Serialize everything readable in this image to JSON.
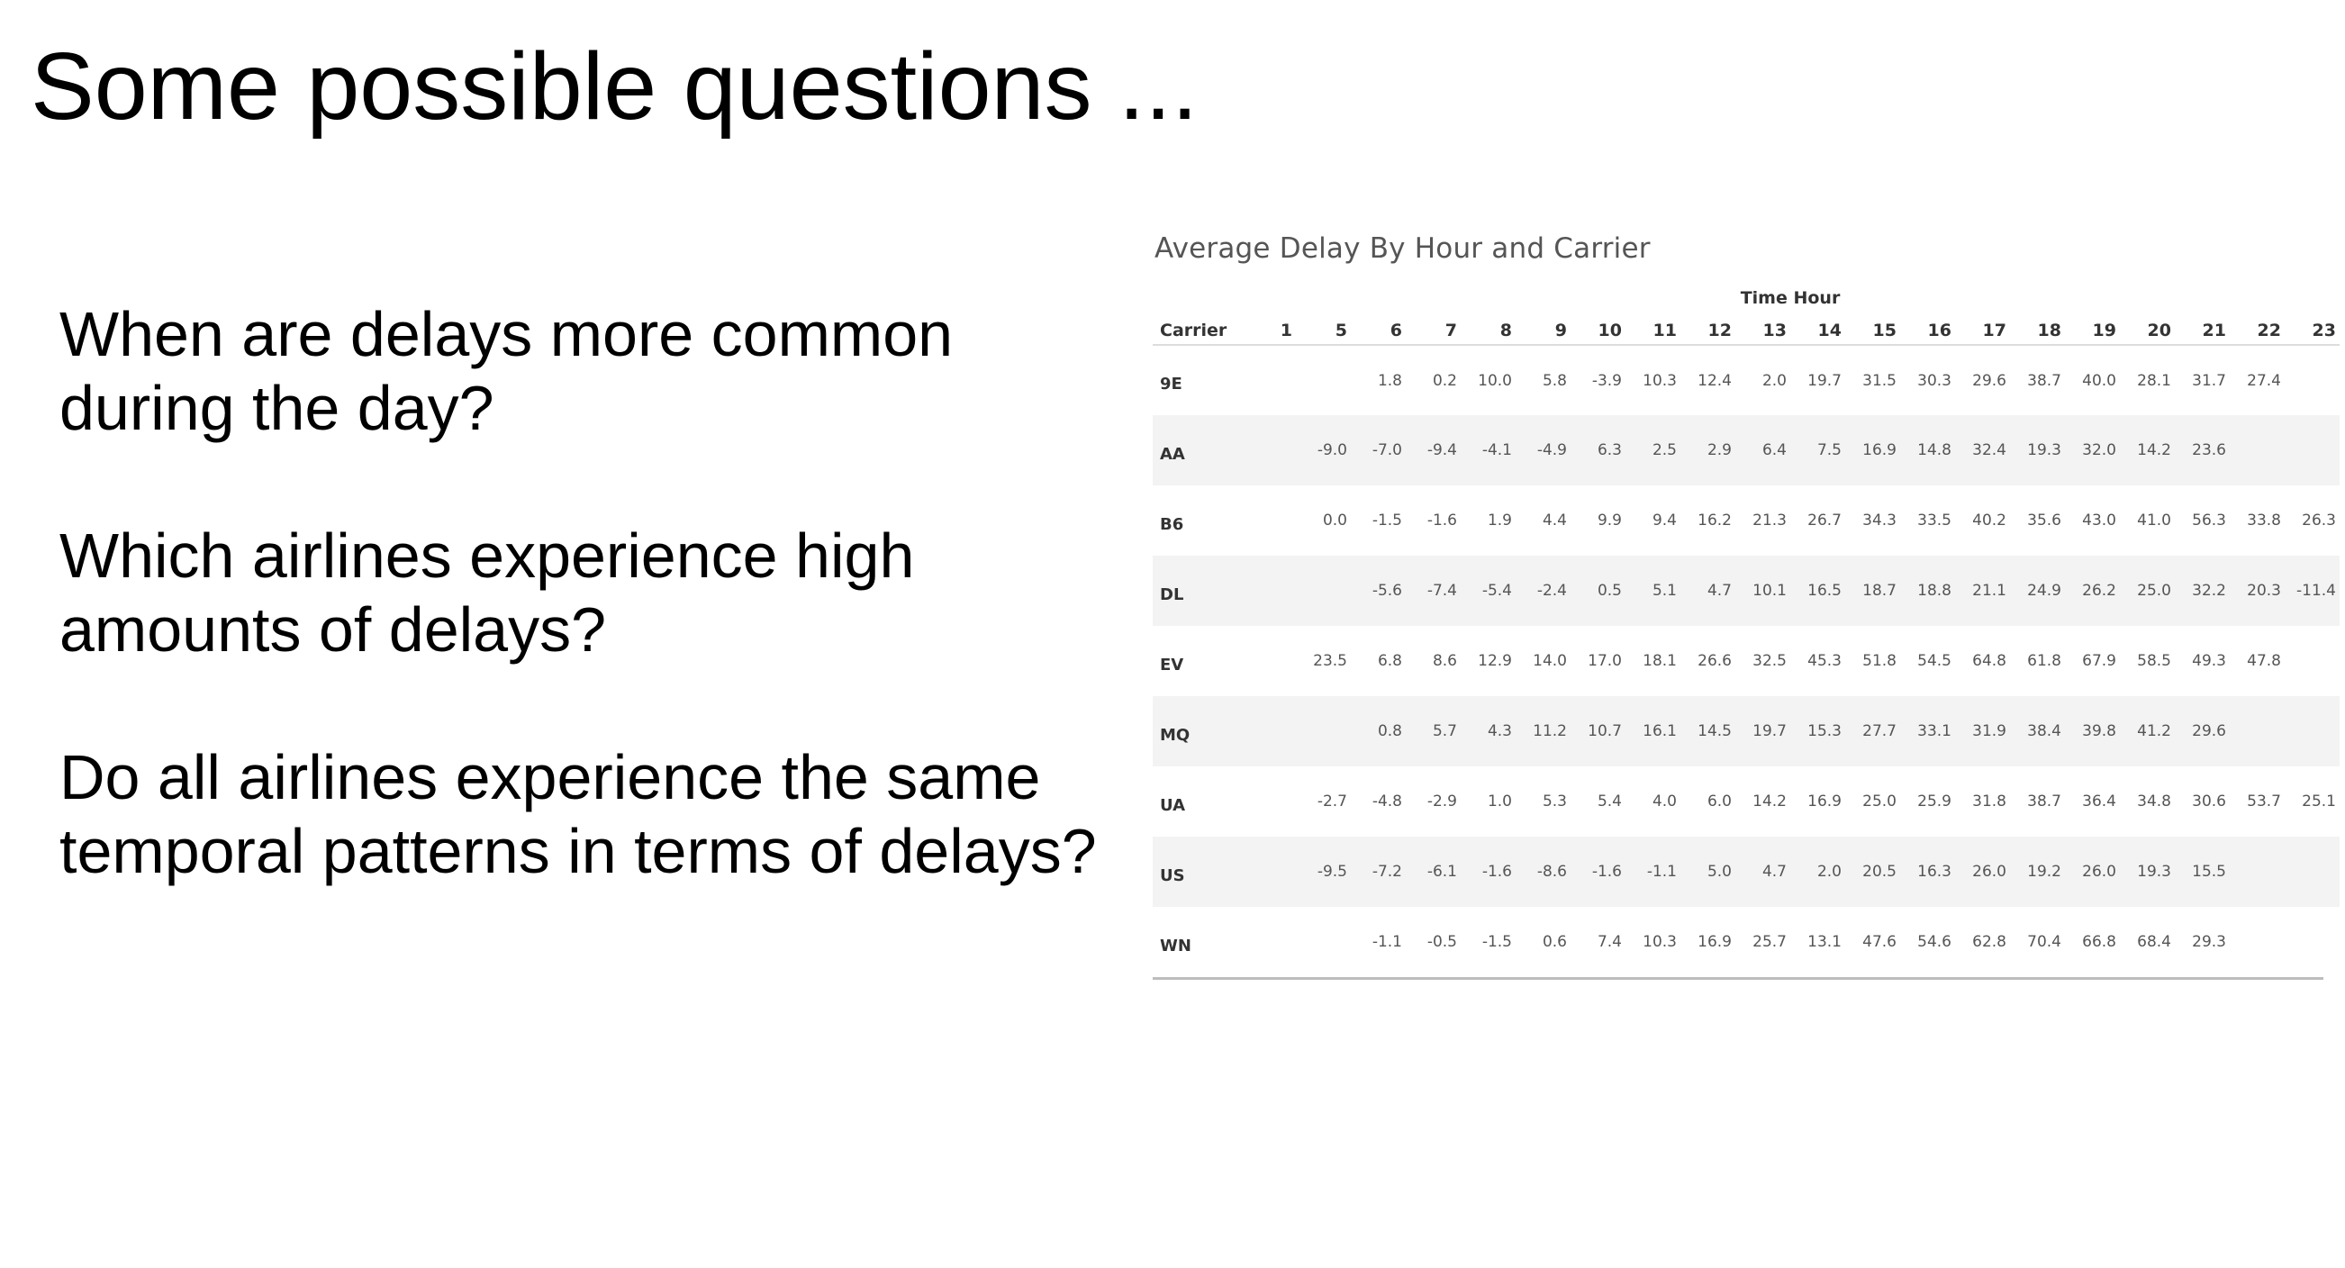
{
  "slide": {
    "title": "Some possible questions ...",
    "questions": [
      "When are delays more common during the day?",
      "Which airlines experience high amounts of delays?",
      "Do all airlines experience the same temporal patterns in terms of delays?"
    ]
  },
  "table": {
    "title": "Average Delay By Hour and Carrier",
    "column_group_label": "Time Hour",
    "row_header_label": "Carrier",
    "hours": [
      "1",
      "5",
      "6",
      "7",
      "8",
      "9",
      "10",
      "11",
      "12",
      "13",
      "14",
      "15",
      "16",
      "17",
      "18",
      "19",
      "20",
      "21",
      "22",
      "23"
    ],
    "rows": [
      {
        "carrier": "9E",
        "values": [
          "",
          "",
          "1.8",
          "0.2",
          "10.0",
          "5.8",
          "-3.9",
          "10.3",
          "12.4",
          "2.0",
          "19.7",
          "31.5",
          "30.3",
          "29.6",
          "38.7",
          "40.0",
          "28.1",
          "31.7",
          "27.4",
          ""
        ]
      },
      {
        "carrier": "AA",
        "values": [
          "",
          "-9.0",
          "-7.0",
          "-9.4",
          "-4.1",
          "-4.9",
          "6.3",
          "2.5",
          "2.9",
          "6.4",
          "7.5",
          "16.9",
          "14.8",
          "32.4",
          "19.3",
          "32.0",
          "14.2",
          "23.6",
          "",
          ""
        ]
      },
      {
        "carrier": "B6",
        "values": [
          "",
          "0.0",
          "-1.5",
          "-1.6",
          "1.9",
          "4.4",
          "9.9",
          "9.4",
          "16.2",
          "21.3",
          "26.7",
          "34.3",
          "33.5",
          "40.2",
          "35.6",
          "43.0",
          "41.0",
          "56.3",
          "33.8",
          "26.3"
        ]
      },
      {
        "carrier": "DL",
        "values": [
          "",
          "",
          "-5.6",
          "-7.4",
          "-5.4",
          "-2.4",
          "0.5",
          "5.1",
          "4.7",
          "10.1",
          "16.5",
          "18.7",
          "18.8",
          "21.1",
          "24.9",
          "26.2",
          "25.0",
          "32.2",
          "20.3",
          "-11.4"
        ]
      },
      {
        "carrier": "EV",
        "values": [
          "",
          "23.5",
          "6.8",
          "8.6",
          "12.9",
          "14.0",
          "17.0",
          "18.1",
          "26.6",
          "32.5",
          "45.3",
          "51.8",
          "54.5",
          "64.8",
          "61.8",
          "67.9",
          "58.5",
          "49.3",
          "47.8",
          ""
        ]
      },
      {
        "carrier": "MQ",
        "values": [
          "",
          "",
          "0.8",
          "5.7",
          "4.3",
          "11.2",
          "10.7",
          "16.1",
          "14.5",
          "19.7",
          "15.3",
          "27.7",
          "33.1",
          "31.9",
          "38.4",
          "39.8",
          "41.2",
          "29.6",
          "",
          ""
        ]
      },
      {
        "carrier": "UA",
        "values": [
          "",
          "-2.7",
          "-4.8",
          "-2.9",
          "1.0",
          "5.3",
          "5.4",
          "4.0",
          "6.0",
          "14.2",
          "16.9",
          "25.0",
          "25.9",
          "31.8",
          "38.7",
          "36.4",
          "34.8",
          "30.6",
          "53.7",
          "25.1"
        ]
      },
      {
        "carrier": "US",
        "values": [
          "",
          "-9.5",
          "-7.2",
          "-6.1",
          "-1.6",
          "-8.6",
          "-1.6",
          "-1.1",
          "5.0",
          "4.7",
          "2.0",
          "20.5",
          "16.3",
          "26.0",
          "19.2",
          "26.0",
          "19.3",
          "15.5",
          "",
          ""
        ]
      },
      {
        "carrier": "WN",
        "values": [
          "",
          "",
          "-1.1",
          "-0.5",
          "-1.5",
          "0.6",
          "7.4",
          "10.3",
          "16.9",
          "25.7",
          "13.1",
          "47.6",
          "54.6",
          "62.8",
          "70.4",
          "66.8",
          "68.4",
          "29.3",
          "",
          ""
        ]
      }
    ]
  }
}
